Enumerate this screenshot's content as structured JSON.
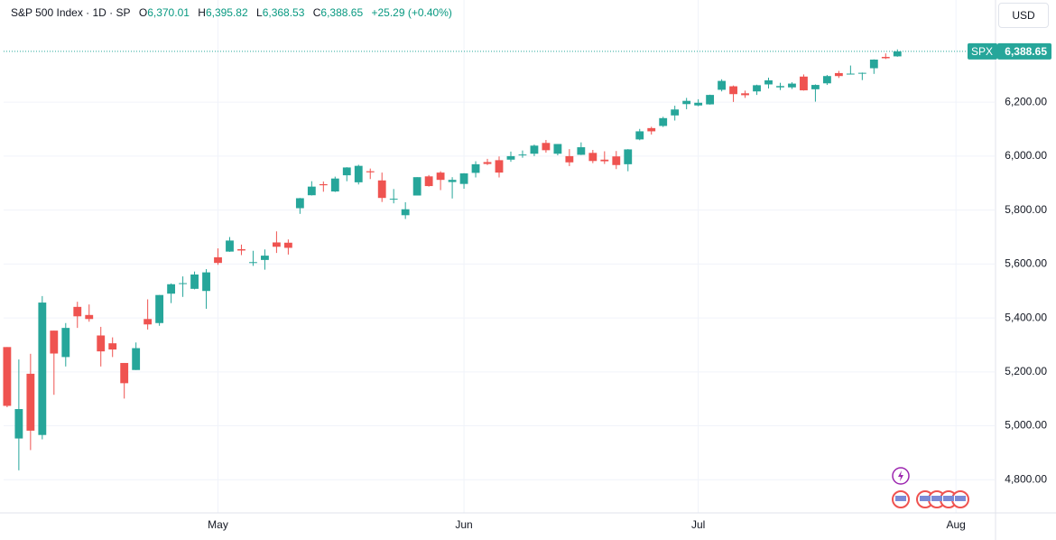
{
  "header": {
    "title": "S&P 500 Index · 1D · SP",
    "open_label": "O",
    "open": "6,370.01",
    "high_label": "H",
    "high": "6,395.82",
    "low_label": "L",
    "low": "6,368.53",
    "close_label": "C",
    "close": "6,388.65",
    "change": "+25.29 (+0.40%)"
  },
  "currency": "USD",
  "chart_data": {
    "type": "candlestick",
    "symbol": "SPX",
    "last_price": 6388.65,
    "last_price_label": "6,388.65",
    "up_color": "#26a69a",
    "down_color": "#ef5350",
    "open": [
      5292,
      4953,
      5193,
      4966,
      5353,
      5255,
      5441,
      5411,
      5335,
      5306,
      5233,
      5207,
      5396,
      5381,
      5490,
      5529,
      5508,
      5500,
      5625,
      5646,
      5655,
      5606,
      5615,
      5680,
      5679,
      5807,
      5855,
      5896,
      5869,
      5929,
      5903,
      5944,
      5910,
      5841,
      5781,
      5854,
      5925,
      5939,
      5904,
      5897,
      5938,
      5978,
      5985,
      5987,
      6004,
      6009,
      6049,
      6009,
      6000,
      6005,
      6012,
      5987,
      5999,
      5970,
      6062,
      6104,
      6112,
      6151,
      6193,
      6188,
      6192,
      6246,
      6259,
      6233,
      6240,
      6266,
      6255,
      6255,
      6295,
      6248,
      6270,
      6308,
      6304,
      6307,
      6326,
      6368,
      6370.01
    ],
    "high": [
      5292,
      5246,
      5267,
      5481,
      5353,
      5381,
      5460,
      5450,
      5367,
      5328,
      5233,
      5309,
      5469,
      5485,
      5528,
      5554,
      5572,
      5581,
      5658,
      5700,
      5672,
      5649,
      5654,
      5721,
      5691,
      5845,
      5907,
      5906,
      5924,
      5959,
      5968,
      5954,
      5939,
      5878,
      5829,
      5922,
      5930,
      5944,
      5922,
      5937,
      5981,
      5990,
      5999,
      6017,
      6021,
      6043,
      6060,
      6045,
      6026,
      6051,
      6023,
      6018,
      6019,
      6026,
      6101,
      6109,
      6146,
      6187,
      6216,
      6211,
      6228,
      6285,
      6262,
      6243,
      6265,
      6291,
      6272,
      6274,
      6303,
      6266,
      6301,
      6316,
      6336,
      6310,
      6359,
      6381,
      6395.82
    ],
    "low": [
      5069,
      4835,
      4910,
      4950,
      5115,
      5220,
      5363,
      5386,
      5220,
      5255,
      5101,
      5207,
      5357,
      5371,
      5455,
      5478,
      5506,
      5434,
      5597,
      5645,
      5633,
      5593,
      5579,
      5641,
      5635,
      5786,
      5854,
      5868,
      5867,
      5907,
      5895,
      5915,
      5830,
      5825,
      5767,
      5854,
      5887,
      5874,
      5843,
      5879,
      5921,
      5967,
      5921,
      5979,
      5994,
      6000,
      6013,
      6003,
      5963,
      6004,
      5974,
      5971,
      5952,
      5944,
      6059,
      6080,
      6108,
      6132,
      6174,
      6185,
      6191,
      6240,
      6201,
      6216,
      6227,
      6251,
      6245,
      6249,
      6243,
      6202,
      6264,
      6290,
      6303,
      6282,
      6305,
      6360,
      6368.53
    ],
    "close": [
      5074,
      5062,
      4982,
      5457,
      5268,
      5363,
      5406,
      5396,
      5276,
      5283,
      5158,
      5288,
      5376,
      5485,
      5525,
      5529,
      5561,
      5569,
      5604,
      5687,
      5650,
      5607,
      5631,
      5664,
      5660,
      5844,
      5887,
      5892,
      5917,
      5958,
      5964,
      5940,
      5845,
      5842,
      5803,
      5922,
      5889,
      5912,
      5912,
      5936,
      5970,
      5971,
      5939,
      6000,
      6006,
      6039,
      6022,
      6045,
      5977,
      6033,
      5982,
      5981,
      5967,
      6025,
      6092,
      6092,
      6141,
      6173,
      6205,
      6198,
      6227,
      6279,
      6230,
      6226,
      6263,
      6281,
      6260,
      6269,
      6244,
      6264,
      6297,
      6297,
      6306,
      6309,
      6358,
      6363,
      6388.65
    ],
    "xlim": [
      -0.3,
      84.3
    ],
    "xticks": [
      {
        "value": 18,
        "label": "May"
      },
      {
        "value": 39,
        "label": "Jun"
      },
      {
        "value": 59,
        "label": "Jul"
      },
      {
        "value": 81,
        "label": "Aug"
      }
    ],
    "ylim": [
      4677,
      6579
    ],
    "yticks": [
      {
        "value": 4800,
        "label": "4,800.00"
      },
      {
        "value": 5000,
        "label": "5,000.00"
      },
      {
        "value": 5200,
        "label": "5,200.00"
      },
      {
        "value": 5400,
        "label": "5,400.00"
      },
      {
        "value": 5600,
        "label": "5,600.00"
      },
      {
        "value": 5800,
        "label": "5,800.00"
      },
      {
        "value": 6000,
        "label": "6,000.00"
      },
      {
        "value": 6200,
        "label": "6,200.00"
      }
    ],
    "grid": true
  }
}
